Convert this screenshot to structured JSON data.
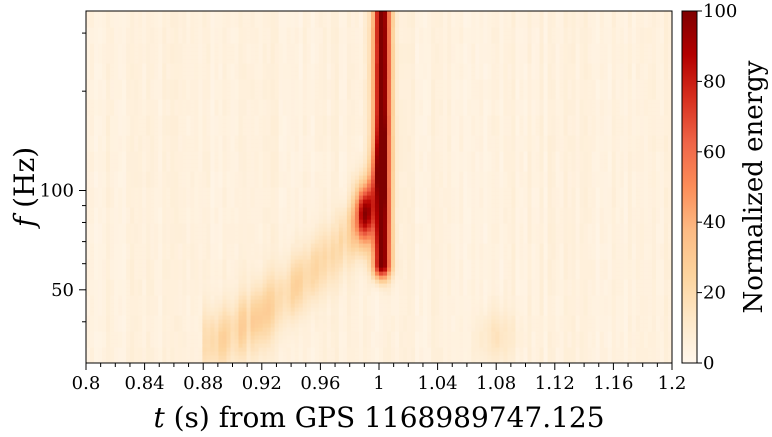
{
  "chart_data": {
    "type": "heatmap",
    "title": "",
    "xlabel_var": "t",
    "xlabel_rest": " (s) from GPS 1168989747.125",
    "ylabel_var": "f",
    "ylabel_rest": " (Hz)",
    "xlim": [
      0.8,
      1.2
    ],
    "xticks": [
      0.8,
      0.84,
      0.88,
      0.92,
      0.96,
      1.0,
      1.04,
      1.08,
      1.12,
      1.16,
      1.2
    ],
    "xtick_labels": [
      "0.8",
      "0.84",
      "0.88",
      "0.92",
      "0.96",
      "1",
      "1.04",
      "1.08",
      "1.12",
      "1.16",
      "1.2"
    ],
    "y_scale": "log",
    "ylim": [
      30,
      350
    ],
    "yticks": [
      50,
      100
    ],
    "ytick_labels": [
      "50",
      "100"
    ],
    "colorbar": {
      "label": "Normalized energy",
      "range": [
        0,
        100
      ],
      "ticks": [
        0,
        20,
        40,
        60,
        80,
        100
      ],
      "tick_labels": [
        "0",
        "20",
        "40",
        "60",
        "80",
        "100"
      ],
      "colors": [
        "#fff7ec",
        "#fee8c8",
        "#fdd49e",
        "#fdbb84",
        "#fc8d59",
        "#ef6548",
        "#d7301f",
        "#b30000",
        "#7f0000"
      ]
    },
    "features": [
      {
        "name": "chirp track",
        "points": [
          [
            0.89,
            35
          ],
          [
            0.92,
            42
          ],
          [
            0.95,
            55
          ],
          [
            0.97,
            65
          ],
          [
            0.99,
            85
          ],
          [
            1.0,
            120
          ]
        ],
        "energy": 18
      },
      {
        "name": "merger peak",
        "t": 1.002,
        "f_min": 60,
        "f_max": 350,
        "energy": 100
      }
    ]
  }
}
